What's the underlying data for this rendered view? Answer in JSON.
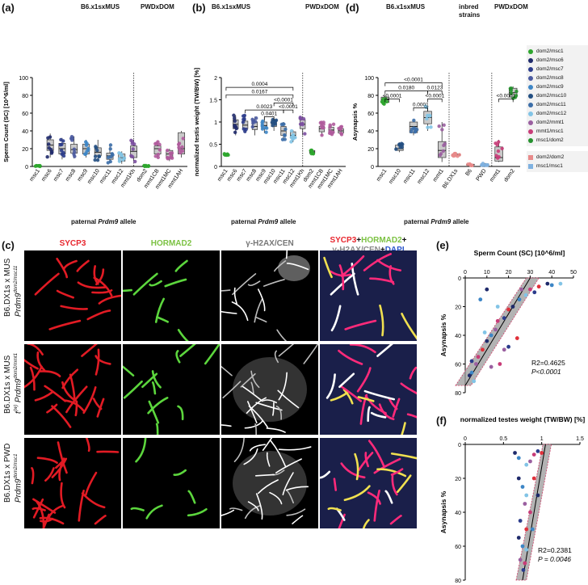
{
  "panel_labels": {
    "a": "(a)",
    "b": "(b)",
    "c": "(c)",
    "d": "(d)",
    "e": "(e)",
    "f": "(f)"
  },
  "headers": {
    "b6": "B6.x1sxMUS",
    "pwd": "PWDxDOM",
    "inbred": "inbred strains"
  },
  "xaxis_title_parts": [
    "paternal ",
    "Prdm9",
    " allele"
  ],
  "panel_c": {
    "channels": [
      "SYCP3",
      "HORMAD2",
      "γ-H2AX/CEN"
    ],
    "merge": [
      {
        "t": "SYCP3",
        "c": "#e8262e"
      },
      {
        "t": "+",
        "c": "#111"
      },
      {
        "t": "HORMAD2",
        "c": "#7cc243"
      },
      {
        "t": "+",
        "c": "#111"
      },
      {
        "t": "γ-H2AX/CEN",
        "c": "#888888"
      },
      {
        "t": "+",
        "c": "#111"
      },
      {
        "t": "DAPI",
        "c": "#2a55c9"
      }
    ],
    "rows": [
      {
        "line1": "B6.DX1s x MUS",
        "line2": "Prdm9",
        "sup": "dom2/msc11"
      },
      {
        "line1": "B6.DX1s x MUS",
        "line2": "Prdm9",
        "sup": "dom2/mmt1",
        "pre": "t",
        "presup": "(w)"
      },
      {
        "line1": "B6.DX1s x PWD",
        "line2": "Prdm9",
        "sup": "dom2/msc1"
      }
    ]
  },
  "legend": {
    "items": [
      {
        "label": "dom2/msc1",
        "color": "#2ea62e",
        "shape": "circle"
      },
      {
        "label": "dom2/msc6",
        "color": "#1f2a6b",
        "shape": "circle"
      },
      {
        "label": "dom2/msc7",
        "color": "#2b3c8c",
        "shape": "circle"
      },
      {
        "label": "dom2/msc8",
        "color": "#4a5aa0",
        "shape": "circle"
      },
      {
        "label": "dom2/msc9",
        "color": "#3d86c6",
        "shape": "circle"
      },
      {
        "label": "dom2/msc10",
        "color": "#234f82",
        "shape": "circle"
      },
      {
        "label": "dom2/msc11",
        "color": "#3c6ea8",
        "shape": "circle"
      },
      {
        "label": "dom2/msc12",
        "color": "#82c4e6",
        "shape": "circle"
      },
      {
        "label": "dom2/mmt1",
        "color": "#9a5fa0",
        "shape": "circle"
      },
      {
        "label": "mmt1/msc1",
        "color": "#c83c78",
        "shape": "circle"
      },
      {
        "label": "msc1/dom2",
        "color": "#25912e",
        "shape": "circle"
      },
      {
        "label": "dom2/dom2",
        "color": "#e88a8a",
        "shape": "square"
      },
      {
        "label": "msc1/msc1",
        "color": "#7fb1e0",
        "shape": "square"
      }
    ]
  },
  "chart_data": [
    {
      "panel": "a",
      "type": "box",
      "ylabel": "Sperm Count (SC) [10^6/ml]",
      "ylim": [
        0,
        100
      ],
      "yticks": [
        0,
        20,
        40,
        60,
        80,
        100
      ],
      "categories": [
        "msc1",
        "msc6",
        "msc7",
        "msc8",
        "msc9",
        "msc10",
        "msc11",
        "msc12",
        "mmt1Kh",
        "dom2",
        "mmt1CB",
        "mmt1MC",
        "mmt1AH"
      ],
      "colors": [
        "#2ea62e",
        "#1f2a6b",
        "#2b3c8c",
        "#4a5aa0",
        "#3d86c6",
        "#234f82",
        "#3c6ea8",
        "#82c4e6",
        "#7b4fa0",
        "#2ea62e",
        "#b05a9c",
        "#b05a9c",
        "#b05a9c"
      ],
      "boxes": [
        [
          0,
          0,
          0.3,
          0.6,
          1
        ],
        [
          10,
          18,
          24,
          30,
          37
        ],
        [
          8,
          14,
          20,
          26,
          32
        ],
        [
          9,
          15,
          19,
          25,
          34
        ],
        [
          10,
          14,
          20,
          25,
          30
        ],
        [
          7,
          12,
          16,
          21,
          30
        ],
        [
          4,
          8,
          12,
          15,
          25
        ],
        [
          3,
          6,
          10,
          14,
          17
        ],
        [
          5,
          10,
          17,
          23,
          30
        ],
        [
          0,
          0,
          0.3,
          0.6,
          1
        ],
        [
          10,
          14,
          20,
          23,
          29
        ],
        [
          6,
          10,
          14,
          18,
          20
        ],
        [
          10,
          14,
          20,
          38,
          40
        ]
      ],
      "separator_after": 9
    },
    {
      "panel": "b",
      "type": "box",
      "ylabel": "normalized testis weight (TW/BW) [%]",
      "ylim": [
        0,
        2.0
      ],
      "yticks": [
        0,
        0.5,
        1.0,
        1.5,
        2.0
      ],
      "categories": [
        "msc1",
        "msc6",
        "msc7",
        "msc8",
        "msc9",
        "msc10",
        "msc11",
        "msc12",
        "mmt1Kh",
        "dom2",
        "mmt1CB",
        "mmt1MC",
        "mmt1AH"
      ],
      "colors": [
        "#2ea62e",
        "#1f2a6b",
        "#2b3c8c",
        "#4a5aa0",
        "#3d86c6",
        "#234f82",
        "#3c6ea8",
        "#82c4e6",
        "#7b4fa0",
        "#2ea62e",
        "#b05a9c",
        "#b05a9c",
        "#b05a9c"
      ],
      "boxes": [
        [
          0.25,
          0.26,
          0.27,
          0.28,
          0.29
        ],
        [
          0.7,
          0.85,
          0.95,
          1.05,
          1.15
        ],
        [
          0.75,
          0.85,
          0.93,
          1.02,
          1.15
        ],
        [
          0.7,
          0.83,
          0.9,
          1.0,
          1.12
        ],
        [
          0.75,
          0.85,
          0.92,
          1.0,
          1.1
        ],
        [
          0.8,
          0.9,
          0.98,
          1.05,
          1.1
        ],
        [
          0.6,
          0.7,
          0.8,
          0.9,
          1.0
        ],
        [
          0.55,
          0.65,
          0.7,
          0.78,
          0.82
        ],
        [
          0.7,
          0.85,
          0.95,
          1.05,
          1.12
        ],
        [
          0.28,
          0.3,
          0.33,
          0.36,
          0.38
        ],
        [
          0.7,
          0.78,
          0.85,
          0.9,
          1.0
        ],
        [
          0.7,
          0.75,
          0.82,
          0.88,
          0.95
        ],
        [
          0.7,
          0.75,
          0.8,
          0.85,
          0.9
        ]
      ],
      "separator_after": 9,
      "brackets": [
        {
          "from": 1,
          "to": 8,
          "level": 1.78,
          "label": "0.0004"
        },
        {
          "from": 1,
          "to": 8,
          "level": 1.61,
          "label": "0.0167"
        },
        {
          "from": 6,
          "to": 8,
          "level": 1.43,
          "label": "<0.0001"
        },
        {
          "from": 3,
          "to": 7,
          "level": 1.27,
          "label": "0.0023"
        },
        {
          "from": 7,
          "to": 8,
          "level": 1.27,
          "label": "<0.0001"
        },
        {
          "from": 5,
          "to": 6,
          "level": 1.12,
          "label": "0.0401"
        }
      ]
    },
    {
      "panel": "d",
      "type": "box",
      "ylabel": "Asynapsis %",
      "ylim": [
        0,
        100
      ],
      "yticks": [
        0,
        20,
        40,
        60,
        80,
        100
      ],
      "categories": [
        "msc1",
        "msc10",
        "msc11",
        "msc12",
        "mmt1",
        "B6.DX1s",
        "B6",
        "PWD",
        "mmt1",
        "dom2"
      ],
      "colors": [
        "#2ea62e",
        "#234f82",
        "#3c6ea8",
        "#82c4e6",
        "#9a5fa0",
        "#e88a8a",
        "#e88a8a",
        "#7fb1e0",
        "#c83c78",
        "#25912e"
      ],
      "boxes": [
        [
          70,
          72,
          75,
          78,
          80
        ],
        [
          16,
          18,
          20,
          24,
          27
        ],
        [
          35,
          38,
          45,
          50,
          52
        ],
        [
          40,
          48,
          55,
          62,
          68
        ],
        [
          5,
          10,
          18,
          28,
          50
        ],
        [
          11,
          12,
          13,
          14,
          15
        ],
        [
          1,
          1.5,
          2,
          2.5,
          3
        ],
        [
          1,
          1.5,
          2,
          3,
          4
        ],
        [
          5,
          6,
          10,
          22,
          30
        ],
        [
          75,
          78,
          83,
          88,
          90
        ]
      ],
      "separators_after": [
        5,
        8
      ],
      "brackets": [
        {
          "from": 1,
          "to": 5,
          "level": 94,
          "label": "<0.0001"
        },
        {
          "from": 1,
          "to": 4,
          "level": 85,
          "label": "0.0180"
        },
        {
          "from": 4,
          "to": 5,
          "level": 85,
          "label": "0.0123"
        },
        {
          "from": 1,
          "to": 2,
          "level": 76,
          "label": "<0.0001"
        },
        {
          "from": 3,
          "to": 4,
          "level": 66,
          "label": "0.0001"
        },
        {
          "from": 4,
          "to": 5,
          "level": 76,
          "label": "<0.0001"
        },
        {
          "from": 9,
          "to": 10,
          "level": 76,
          "label": "<0.0001"
        }
      ]
    },
    {
      "panel": "e",
      "type": "scatter",
      "title": "Sperm Count  (SC) [10^6/ml]",
      "ylabel": "Asynapsis %",
      "xlim": [
        0,
        50
      ],
      "xticks": [
        0,
        10,
        20,
        30,
        40,
        50
      ],
      "ylim": [
        0,
        80
      ],
      "yticks": [
        0,
        20,
        40,
        60,
        80
      ],
      "annotation": [
        "R2=0.4625",
        "P<0.0001"
      ],
      "fit": [
        [
          0,
          75
        ],
        [
          30,
          0
        ]
      ],
      "points": [
        [
          2,
          68
        ],
        [
          3,
          66
        ],
        [
          4,
          72
        ],
        [
          5,
          60
        ],
        [
          6,
          55
        ],
        [
          3,
          58
        ],
        [
          8,
          50
        ],
        [
          10,
          44
        ],
        [
          12,
          40
        ],
        [
          9,
          38
        ],
        [
          14,
          36
        ],
        [
          15,
          30
        ],
        [
          18,
          28
        ],
        [
          20,
          22
        ],
        [
          22,
          20
        ],
        [
          25,
          15
        ],
        [
          28,
          12
        ],
        [
          26,
          8
        ],
        [
          30,
          8
        ],
        [
          32,
          10
        ],
        [
          34,
          6
        ],
        [
          38,
          4
        ],
        [
          40,
          5
        ],
        [
          44,
          4
        ],
        [
          12,
          62
        ],
        [
          16,
          60
        ],
        [
          20,
          48
        ],
        [
          24,
          42
        ],
        [
          10,
          8
        ],
        [
          7,
          15
        ],
        [
          15,
          20
        ],
        [
          18,
          50
        ]
      ]
    },
    {
      "panel": "f",
      "type": "scatter",
      "title": "normalized testes weight (TW/BW) [%]",
      "ylabel": "Asynapsis %",
      "xlim": [
        0,
        1.5
      ],
      "xticks": [
        0,
        0.5,
        1.0,
        1.5
      ],
      "ylim": [
        0,
        80
      ],
      "yticks": [
        0,
        20,
        40,
        60,
        80
      ],
      "annotation": [
        "R2=0.2381",
        "P = 0.0046"
      ],
      "fit": [
        [
          0.75,
          80
        ],
        [
          1.05,
          0
        ]
      ],
      "points": [
        [
          0.65,
          5
        ],
        [
          0.7,
          8
        ],
        [
          0.8,
          12
        ],
        [
          0.85,
          10
        ],
        [
          0.9,
          6
        ],
        [
          0.95,
          4
        ],
        [
          1.0,
          5
        ],
        [
          0.7,
          20
        ],
        [
          0.75,
          25
        ],
        [
          0.8,
          30
        ],
        [
          0.78,
          35
        ],
        [
          0.85,
          40
        ],
        [
          0.72,
          45
        ],
        [
          0.8,
          50
        ],
        [
          0.7,
          55
        ],
        [
          0.75,
          60
        ],
        [
          0.8,
          62
        ],
        [
          0.72,
          68
        ],
        [
          0.78,
          70
        ],
        [
          0.76,
          74
        ],
        [
          0.9,
          20
        ],
        [
          0.95,
          30
        ],
        [
          0.88,
          50
        ]
      ]
    }
  ]
}
